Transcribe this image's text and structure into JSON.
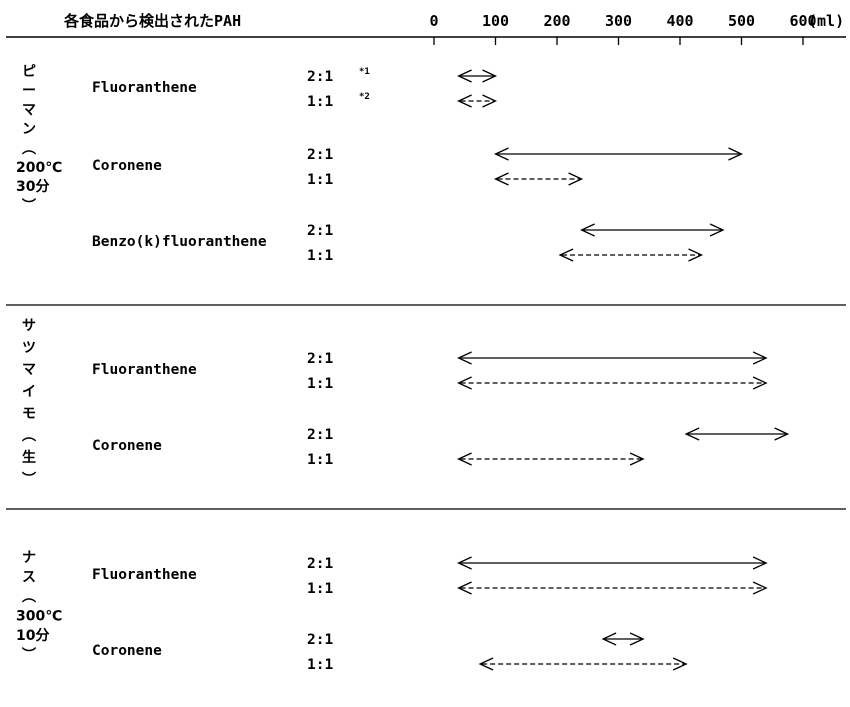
{
  "chart_data": {
    "type": "range",
    "title": "各食品から検出されたPAH",
    "x_ticks": [
      "0",
      "100",
      "200",
      "300",
      "400",
      "500",
      "600"
    ],
    "x_unit": "(ml)",
    "xlim": [
      0,
      600
    ],
    "line_styles": {
      "2:1": "solid",
      "1:1": "dashed"
    },
    "groups": [
      {
        "food_label": "ピーマン︵200℃30分︶",
        "rows": [
          {
            "compound": "Fluoranthene",
            "ratio": "2:1",
            "note": "*1",
            "x_start": 40,
            "x_end": 100
          },
          {
            "compound": "Fluoranthene",
            "ratio": "1:1",
            "note": "*2",
            "x_start": 40,
            "x_end": 100
          },
          {
            "compound": "Coronene",
            "ratio": "2:1",
            "note": "",
            "x_start": 100,
            "x_end": 500
          },
          {
            "compound": "Coronene",
            "ratio": "1:1",
            "note": "",
            "x_start": 100,
            "x_end": 240
          },
          {
            "compound": "Benzo(k)fluoranthene",
            "ratio": "2:1",
            "note": "",
            "x_start": 240,
            "x_end": 470
          },
          {
            "compound": "Benzo(k)fluoranthene",
            "ratio": "1:1",
            "note": "",
            "x_start": 205,
            "x_end": 435
          }
        ]
      },
      {
        "food_label": "サツマイモ︵生︶",
        "rows": [
          {
            "compound": "Fluoranthene",
            "ratio": "2:1",
            "note": "",
            "x_start": 40,
            "x_end": 540
          },
          {
            "compound": "Fluoranthene",
            "ratio": "1:1",
            "note": "",
            "x_start": 40,
            "x_end": 540
          },
          {
            "compound": "Coronene",
            "ratio": "2:1",
            "note": "",
            "x_start": 410,
            "x_end": 575
          },
          {
            "compound": "Coronene",
            "ratio": "1:1",
            "note": "",
            "x_start": 40,
            "x_end": 340
          }
        ]
      },
      {
        "food_label": "ナス︵300℃10分︶",
        "rows": [
          {
            "compound": "Fluoranthene",
            "ratio": "2:1",
            "note": "",
            "x_start": 40,
            "x_end": 540
          },
          {
            "compound": "Fluoranthene",
            "ratio": "1:1",
            "note": "",
            "x_start": 40,
            "x_end": 540
          },
          {
            "compound": "Coronene",
            "ratio": "2:1",
            "note": "",
            "x_start": 275,
            "x_end": 340
          },
          {
            "compound": "Coronene",
            "ratio": "1:1",
            "note": "",
            "x_start": 75,
            "x_end": 410
          }
        ]
      }
    ]
  }
}
